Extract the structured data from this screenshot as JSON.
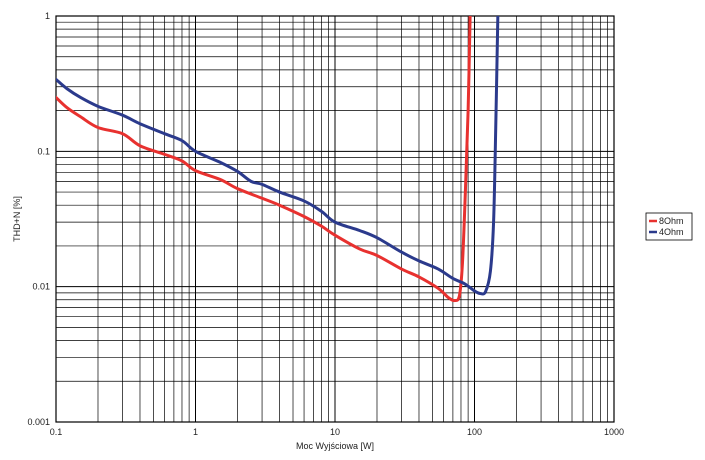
{
  "chart_data": {
    "type": "line",
    "title": "",
    "xlabel": "Moc Wyjściowa [W]",
    "ylabel": "THD+N [%]",
    "x_scale": "log",
    "y_scale": "log",
    "xlim": [
      0.1,
      1000
    ],
    "ylim": [
      0.001,
      1
    ],
    "grid": true,
    "legend_position": "right",
    "x_ticks": [
      "0.1",
      "1",
      "10",
      "100",
      "1000"
    ],
    "y_ticks": [
      "0.001",
      "0.01",
      "0.1",
      "1"
    ],
    "series": [
      {
        "name": "8Ohm",
        "color": "#e8312f",
        "points": [
          [
            0.1,
            0.25
          ],
          [
            0.12,
            0.21
          ],
          [
            0.15,
            0.18
          ],
          [
            0.2,
            0.15
          ],
          [
            0.3,
            0.135
          ],
          [
            0.4,
            0.11
          ],
          [
            0.6,
            0.095
          ],
          [
            0.8,
            0.085
          ],
          [
            1.0,
            0.072
          ],
          [
            1.5,
            0.062
          ],
          [
            2.0,
            0.053
          ],
          [
            3.0,
            0.045
          ],
          [
            4.0,
            0.04
          ],
          [
            6.0,
            0.033
          ],
          [
            8.0,
            0.028
          ],
          [
            10.0,
            0.024
          ],
          [
            15.0,
            0.019
          ],
          [
            20.0,
            0.017
          ],
          [
            30.0,
            0.0135
          ],
          [
            40.0,
            0.0118
          ],
          [
            55.0,
            0.0097
          ],
          [
            65.0,
            0.0083
          ],
          [
            72.0,
            0.0079
          ],
          [
            78.0,
            0.0086
          ],
          [
            82.0,
            0.015
          ],
          [
            86.0,
            0.05
          ],
          [
            90.0,
            0.2
          ],
          [
            93.0,
            1.0
          ]
        ]
      },
      {
        "name": "4Ohm",
        "color": "#2b3a8c",
        "points": [
          [
            0.1,
            0.34
          ],
          [
            0.12,
            0.29
          ],
          [
            0.15,
            0.25
          ],
          [
            0.2,
            0.215
          ],
          [
            0.3,
            0.185
          ],
          [
            0.4,
            0.16
          ],
          [
            0.6,
            0.135
          ],
          [
            0.8,
            0.12
          ],
          [
            1.0,
            0.1
          ],
          [
            1.5,
            0.083
          ],
          [
            2.0,
            0.071
          ],
          [
            2.5,
            0.06
          ],
          [
            3.0,
            0.057
          ],
          [
            4.0,
            0.05
          ],
          [
            6.0,
            0.043
          ],
          [
            8.0,
            0.036
          ],
          [
            10.0,
            0.03
          ],
          [
            15.0,
            0.026
          ],
          [
            20.0,
            0.023
          ],
          [
            30.0,
            0.018
          ],
          [
            40.0,
            0.0155
          ],
          [
            55.0,
            0.0135
          ],
          [
            70.0,
            0.0115
          ],
          [
            85.0,
            0.0105
          ],
          [
            100.0,
            0.0093
          ],
          [
            110.0,
            0.0089
          ],
          [
            120.0,
            0.0092
          ],
          [
            130.0,
            0.013
          ],
          [
            137.0,
            0.03
          ],
          [
            142.0,
            0.15
          ],
          [
            147.0,
            1.0
          ]
        ]
      }
    ]
  }
}
